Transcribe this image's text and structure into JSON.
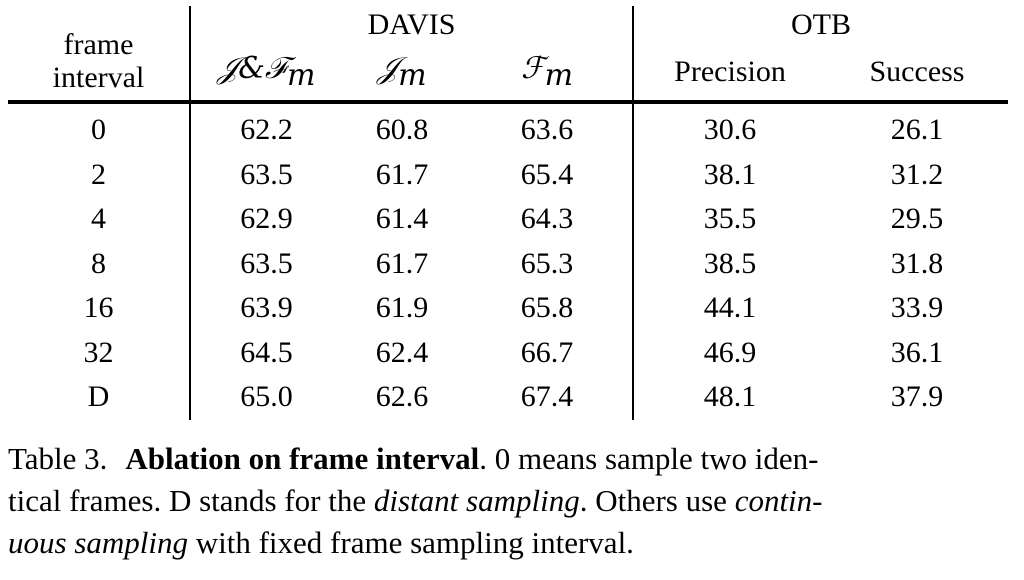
{
  "table": {
    "row_header": "frame interval",
    "row_header_line1": "frame",
    "row_header_line2": "interval",
    "groups": [
      {
        "label": "DAVIS",
        "span": 3
      },
      {
        "label": "OTB",
        "span": 2
      }
    ],
    "columns": [
      {
        "label_main": "𝒥&ℱ",
        "label_sub": "m",
        "group": "DAVIS"
      },
      {
        "label_main": "𝒥",
        "label_sub": "m",
        "group": "DAVIS"
      },
      {
        "label_main": "ℱ",
        "label_sub": "m",
        "group": "DAVIS"
      },
      {
        "label_main": "Precision",
        "label_sub": "",
        "group": "OTB"
      },
      {
        "label_main": "Success",
        "label_sub": "",
        "group": "OTB"
      }
    ],
    "rows": [
      {
        "interval": "0",
        "values": [
          "62.2",
          "60.8",
          "63.6",
          "30.6",
          "26.1"
        ]
      },
      {
        "interval": "2",
        "values": [
          "63.5",
          "61.7",
          "65.4",
          "38.1",
          "31.2"
        ]
      },
      {
        "interval": "4",
        "values": [
          "62.9",
          "61.4",
          "64.3",
          "35.5",
          "29.5"
        ]
      },
      {
        "interval": "8",
        "values": [
          "63.5",
          "61.7",
          "65.3",
          "38.5",
          "31.8"
        ]
      },
      {
        "interval": "16",
        "values": [
          "63.9",
          "61.9",
          "65.8",
          "44.1",
          "33.9"
        ]
      },
      {
        "interval": "32",
        "values": [
          "64.5",
          "62.4",
          "66.7",
          "46.9",
          "36.1"
        ]
      },
      {
        "interval": "D",
        "values": [
          "65.0",
          "62.6",
          "67.4",
          "48.1",
          "37.9"
        ]
      }
    ]
  },
  "caption": {
    "label": "Table 3.",
    "bold_title": "Ablation on frame interval",
    "text_1": ". 0 means sample two iden-",
    "text_2": "tical frames. D stands for the ",
    "italic_1": "distant sampling",
    "text_3": ". Others use ",
    "italic_2": "contin-",
    "italic_3": "uous sampling",
    "text_4": " with fixed frame sampling interval."
  }
}
